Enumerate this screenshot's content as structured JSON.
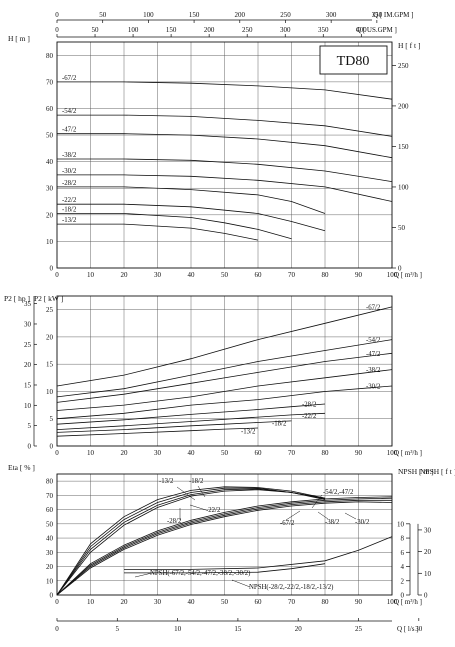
{
  "chart_data": [
    {
      "type": "line",
      "name": "head-chart",
      "title": "TD80",
      "xlabel": "Q [ m³/h ]",
      "ylabel_left": "H [ m ]",
      "ylabel_right": "H [ f t ]",
      "top_axis_1_label": "Q [ IM.GPM ]",
      "top_axis_2_label": "Q [ US.GPM ]",
      "top_axis_1_ticks": [
        "0",
        "50",
        "100",
        "150",
        "200",
        "250",
        "300",
        "350"
      ],
      "top_axis_2_ticks": [
        "0",
        "50",
        "100",
        "150",
        "200",
        "250",
        "300",
        "350",
        "400"
      ],
      "xlim": [
        0,
        100
      ],
      "ylim": [
        0,
        85
      ],
      "x_ticks": [
        "0",
        "10",
        "20",
        "30",
        "40",
        "50",
        "60",
        "70",
        "80",
        "90",
        "100"
      ],
      "y_ticks": [
        "0",
        "10",
        "20",
        "30",
        "40",
        "50",
        "60",
        "70",
        "80"
      ],
      "y_right_ticks": [
        "0",
        "50",
        "100",
        "150",
        "200",
        "250"
      ],
      "series": [
        {
          "name": "-67/2",
          "x": [
            0,
            20,
            40,
            60,
            80,
            100
          ],
          "y": [
            70,
            70,
            69.5,
            68.5,
            67,
            63.5
          ]
        },
        {
          "name": "-54/2",
          "x": [
            0,
            20,
            40,
            60,
            80,
            100
          ],
          "y": [
            57.5,
            57.5,
            57,
            55.5,
            53.5,
            49.5
          ]
        },
        {
          "name": "-47/2",
          "x": [
            0,
            20,
            40,
            60,
            80,
            100
          ],
          "y": [
            50.5,
            50.5,
            50,
            48.5,
            46,
            41.5
          ]
        },
        {
          "name": "-38/2",
          "x": [
            0,
            20,
            40,
            60,
            80,
            100
          ],
          "y": [
            41,
            41,
            40.5,
            39,
            36.5,
            32.5
          ]
        },
        {
          "name": "-30/2",
          "x": [
            0,
            20,
            40,
            60,
            80,
            100
          ],
          "y": [
            35,
            35,
            34.5,
            33,
            30.5,
            25
          ]
        },
        {
          "name": "-28/2",
          "x": [
            0,
            20,
            40,
            60,
            70,
            80
          ],
          "y": [
            30.5,
            30.5,
            29.5,
            27.5,
            25,
            20.5
          ]
        },
        {
          "name": "-22/2",
          "x": [
            0,
            20,
            40,
            60,
            70,
            80
          ],
          "y": [
            24,
            24,
            23,
            20.5,
            17.5,
            14
          ]
        },
        {
          "name": "-18/2",
          "x": [
            0,
            20,
            40,
            50,
            60,
            70
          ],
          "y": [
            20.5,
            20.5,
            19,
            17,
            14.5,
            11
          ]
        },
        {
          "name": "-13/2",
          "x": [
            0,
            20,
            40,
            50,
            60
          ],
          "y": [
            16.5,
            16.5,
            15,
            13,
            10.5
          ]
        }
      ]
    },
    {
      "type": "line",
      "name": "power-chart",
      "xlabel": "Q [ m³/h ]",
      "ylabel_left": "P2 [ hp ]",
      "ylabel_right": "P2 [ kW ]",
      "xlim": [
        0,
        100
      ],
      "ylim": [
        0,
        27.5
      ],
      "x_ticks": [
        "0",
        "10",
        "20",
        "30",
        "40",
        "50",
        "60",
        "70",
        "80",
        "90",
        "100"
      ],
      "kw_ticks": [
        "0",
        "5",
        "10",
        "15",
        "20",
        "25"
      ],
      "hp_ticks": [
        "0",
        "5",
        "10",
        "15",
        "20",
        "25",
        "30",
        "35"
      ],
      "series": [
        {
          "name": "-67/2",
          "x": [
            0,
            20,
            40,
            60,
            80,
            100
          ],
          "y": [
            11,
            13,
            16,
            19.5,
            22.5,
            25.5
          ]
        },
        {
          "name": "-54/2",
          "x": [
            0,
            20,
            40,
            60,
            80,
            100
          ],
          "y": [
            9,
            10.5,
            13,
            15.5,
            17.5,
            19.5
          ]
        },
        {
          "name": "-47/2",
          "x": [
            0,
            20,
            40,
            60,
            80,
            100
          ],
          "y": [
            8,
            9.5,
            11.5,
            13.5,
            15.5,
            17
          ]
        },
        {
          "name": "-38/2",
          "x": [
            0,
            20,
            40,
            60,
            80,
            100
          ],
          "y": [
            6.5,
            7.5,
            9,
            11,
            12.5,
            14
          ]
        },
        {
          "name": "-30/2",
          "x": [
            0,
            20,
            40,
            60,
            80,
            100
          ],
          "y": [
            5,
            6,
            7.5,
            8.5,
            10,
            11
          ]
        },
        {
          "name": "-28/2",
          "x": [
            0,
            20,
            40,
            60,
            70,
            80
          ],
          "y": [
            4,
            4.8,
            5.8,
            6.7,
            7.2,
            7.7
          ]
        },
        {
          "name": "-22/2",
          "x": [
            0,
            20,
            40,
            60,
            70,
            80
          ],
          "y": [
            3,
            3.7,
            4.5,
            5.3,
            5.7,
            6
          ]
        },
        {
          "name": "-18/2",
          "x": [
            0,
            20,
            40,
            50,
            60,
            70
          ],
          "y": [
            2.5,
            3,
            3.7,
            4,
            4.3,
            4.6
          ]
        },
        {
          "name": "-13/2",
          "x": [
            0,
            20,
            40,
            50,
            60
          ],
          "y": [
            1.8,
            2.3,
            2.8,
            3.1,
            3.3
          ]
        }
      ]
    },
    {
      "type": "line",
      "name": "efficiency-npsh-chart",
      "xlabel": "Q [ m³/h ]",
      "x2label": "Q [ l/s ]",
      "ylabel_left": "Eta [ % ]",
      "ylabel_right_1": "NPSH [ m ]",
      "ylabel_right_2": "NPSH [ f t ]",
      "xlim": [
        0,
        100
      ],
      "ylim": [
        0,
        85
      ],
      "x_ticks": [
        "0",
        "10",
        "20",
        "30",
        "40",
        "50",
        "60",
        "70",
        "80",
        "90",
        "100"
      ],
      "x2_ticks": [
        "0",
        "5",
        "10",
        "15",
        "20",
        "25",
        "30"
      ],
      "y_ticks": [
        "0",
        "10",
        "20",
        "30",
        "40",
        "50",
        "60",
        "70",
        "80"
      ],
      "npsh_m_ticks": [
        "0",
        "2",
        "4",
        "6",
        "8",
        "10"
      ],
      "npsh_ft_ticks": [
        "0",
        "10",
        "20",
        "30"
      ],
      "labels": {
        "e_13": "-13/2",
        "e_18": "-18/2",
        "e_22": "-22/2",
        "e_28": "-28/2",
        "e_5447": "-54/2,-47/2",
        "e_67": "-67/2",
        "e_38": "-38/2",
        "e_30": "-30/2",
        "npsh_a": "NPSH(-67/2,-54/2,-47/2,-38/2,-30/2)",
        "npsh_b": "NPSH(-28/2,-22/2,-18/2,-13/2)"
      },
      "series": [
        {
          "name": "eta-small-1",
          "x": [
            0,
            10,
            20,
            30,
            40,
            50,
            60,
            70,
            80
          ],
          "y": [
            0,
            36,
            55,
            67,
            73.5,
            76,
            75.5,
            73,
            68
          ]
        },
        {
          "name": "eta-small-2",
          "x": [
            0,
            10,
            20,
            30,
            40,
            50,
            60,
            70,
            80
          ],
          "y": [
            0,
            34,
            53,
            65,
            72,
            75,
            75,
            72,
            67
          ]
        },
        {
          "name": "eta-small-3",
          "x": [
            0,
            10,
            20,
            30,
            40,
            50,
            60,
            70,
            80
          ],
          "y": [
            0,
            32,
            51,
            63,
            70.5,
            74,
            74.5,
            72,
            67.5
          ]
        },
        {
          "name": "eta-small-4",
          "x": [
            0,
            10,
            20,
            30,
            40,
            50,
            60,
            70,
            80
          ],
          "y": [
            0,
            30,
            49,
            61.5,
            69.5,
            73,
            74,
            72,
            68
          ]
        },
        {
          "name": "eta-large-1",
          "x": [
            0,
            10,
            20,
            30,
            40,
            50,
            60,
            70,
            80,
            90,
            100
          ],
          "y": [
            0,
            22,
            35,
            45,
            52.5,
            58,
            62.5,
            65.5,
            67.5,
            68.5,
            69
          ]
        },
        {
          "name": "eta-large-2",
          "x": [
            0,
            10,
            20,
            30,
            40,
            50,
            60,
            70,
            80,
            90,
            100
          ],
          "y": [
            0,
            21,
            34,
            44,
            51.5,
            57,
            61.5,
            64.5,
            66.5,
            67.5,
            68
          ]
        },
        {
          "name": "eta-large-3",
          "x": [
            0,
            10,
            20,
            30,
            40,
            50,
            60,
            70,
            80,
            90,
            100
          ],
          "y": [
            0,
            20,
            33,
            43,
            50.5,
            56,
            60.5,
            63.5,
            65.5,
            66.5,
            66.5
          ]
        },
        {
          "name": "eta-large-4",
          "x": [
            0,
            10,
            20,
            30,
            40,
            50,
            60,
            70,
            80,
            90,
            100
          ],
          "y": [
            0,
            19,
            32,
            42,
            49.5,
            55,
            59.5,
            62.5,
            64.5,
            65.5,
            65
          ]
        },
        {
          "name": "npsh-large",
          "x": [
            20,
            40,
            60,
            80,
            90,
            100
          ],
          "y": [
            3.6,
            3.6,
            3.8,
            4.8,
            6.3,
            8.2
          ]
        },
        {
          "name": "npsh-small",
          "x": [
            20,
            40,
            60,
            70,
            80
          ],
          "y": [
            3.1,
            3.1,
            3.2,
            3.7,
            4.4
          ]
        }
      ]
    }
  ]
}
